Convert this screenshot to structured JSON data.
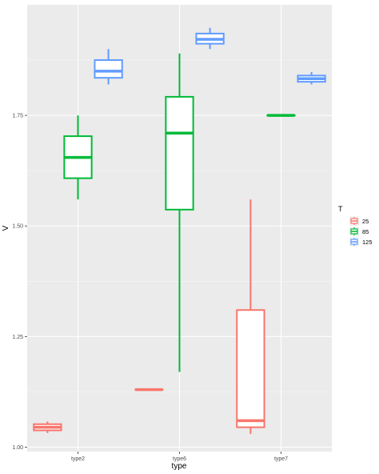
{
  "chart_data": {
    "type": "boxplot",
    "title": "",
    "xlabel": "type",
    "ylabel": "V",
    "categories": [
      "type2",
      "type6",
      "type7"
    ],
    "ylim": [
      0.99,
      2.0
    ],
    "yticks": [
      1.0,
      1.25,
      1.5,
      1.75
    ],
    "ytick_labels": [
      "1.00",
      "1.25",
      "1.50",
      "1.75"
    ],
    "grid": true,
    "legend": {
      "title": "T",
      "position": "right"
    },
    "series": [
      {
        "name": "25",
        "color": "#F8766D",
        "boxes": [
          {
            "category": "type2",
            "min": 1.032,
            "q1": 1.038,
            "median": 1.045,
            "q3": 1.052,
            "max": 1.058
          },
          {
            "category": "type6",
            "min": 1.13,
            "q1": 1.13,
            "median": 1.13,
            "q3": 1.13,
            "max": 1.13
          },
          {
            "category": "type7",
            "min": 1.03,
            "q1": 1.045,
            "median": 1.06,
            "q3": 1.31,
            "max": 1.56
          }
        ]
      },
      {
        "name": "85",
        "color": "#00BA38",
        "boxes": [
          {
            "category": "type2",
            "min": 1.56,
            "q1": 1.608,
            "median": 1.655,
            "q3": 1.703,
            "max": 1.75
          },
          {
            "category": "type6",
            "min": 1.17,
            "q1": 1.537,
            "median": 1.71,
            "q3": 1.792,
            "max": 1.89
          },
          {
            "category": "type7",
            "min": 1.75,
            "q1": 1.75,
            "median": 1.75,
            "q3": 1.75,
            "max": 1.75
          }
        ]
      },
      {
        "name": "125",
        "color": "#619CFF",
        "boxes": [
          {
            "category": "type2",
            "min": 1.82,
            "q1": 1.835,
            "median": 1.85,
            "q3": 1.875,
            "max": 1.9
          },
          {
            "category": "type6",
            "min": 1.9,
            "q1": 1.912,
            "median": 1.922,
            "q3": 1.935,
            "max": 1.948
          },
          {
            "category": "type7",
            "min": 1.82,
            "q1": 1.826,
            "median": 1.833,
            "q3": 1.84,
            "max": 1.848
          }
        ]
      }
    ]
  }
}
